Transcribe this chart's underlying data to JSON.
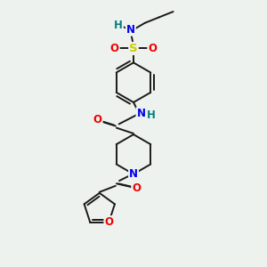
{
  "bg_color": "#eef2ee",
  "atom_colors": {
    "C": "#1a1a1a",
    "N": "#0000ee",
    "O": "#ee0000",
    "S": "#cccc00",
    "H": "#008080"
  },
  "bond_color": "#1a1a1a",
  "bond_lw": 1.4,
  "font_size": 8.5
}
